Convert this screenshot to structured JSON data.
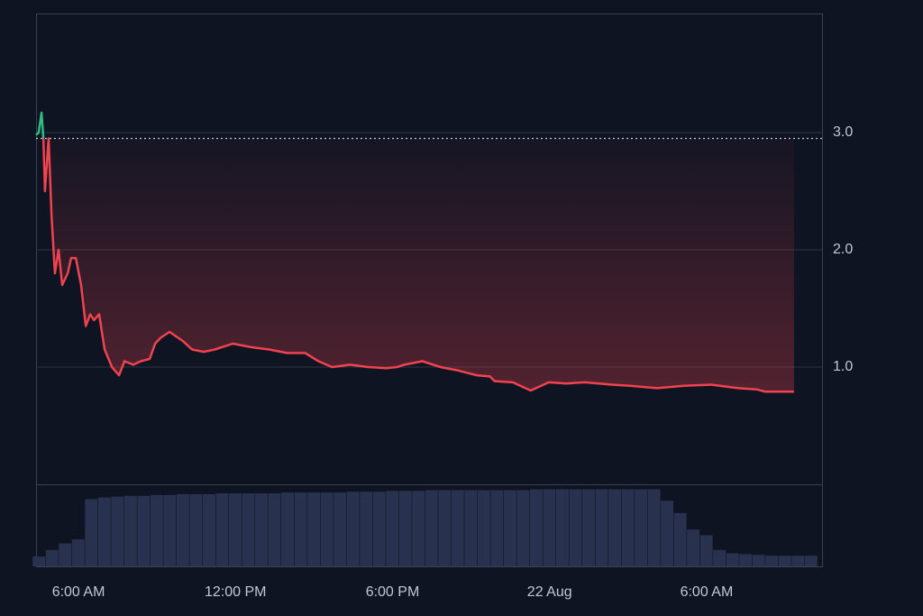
{
  "chart_data": {
    "type": "line",
    "x": [
      4.38,
      4.48,
      4.59,
      4.66,
      4.72,
      4.86,
      4.97,
      5.1,
      5.24,
      5.38,
      5.59,
      5.72,
      5.9,
      6.1,
      6.28,
      6.45,
      6.59,
      6.79,
      7.0,
      7.28,
      7.55,
      7.76,
      8.1,
      8.38,
      8.72,
      8.93,
      9.14,
      9.48,
      10.0,
      10.34,
      10.79,
      11.21,
      11.9,
      12.59,
      13.28,
      13.97,
      14.66,
      15.17,
      15.69,
      16.38,
      17.07,
      17.76,
      18.17,
      18.45,
      19.14,
      19.83,
      20.52,
      21.21,
      21.72,
      21.9,
      22.59,
      23.28,
      23.97,
      24.66,
      25.34,
      26.38,
      27.07,
      28.1,
      29.14,
      30.17,
      31.21,
      31.9,
      32.24,
      32.76,
      33.34
    ],
    "series": [
      {
        "color": "#f0434f",
        "values": [
          null,
          null,
          null,
          2.95,
          2.5,
          2.95,
          2.3,
          1.8,
          2.0,
          1.7,
          1.8,
          1.93,
          1.93,
          1.7,
          1.35,
          1.45,
          1.4,
          1.45,
          1.15,
          1.0,
          0.93,
          1.05,
          1.02,
          1.05,
          1.07,
          1.2,
          1.25,
          1.3,
          1.22,
          1.15,
          1.13,
          1.15,
          1.2,
          1.17,
          1.15,
          1.12,
          1.12,
          1.05,
          1.0,
          1.02,
          1.0,
          0.99,
          1.0,
          1.02,
          1.05,
          1.0,
          0.97,
          0.93,
          0.92,
          0.88,
          0.87,
          0.8,
          0.87,
          0.86,
          0.87,
          0.85,
          0.84,
          0.82,
          0.84,
          0.85,
          0.82,
          0.81,
          0.79,
          0.79,
          0.79
        ]
      },
      {
        "color": "#2dbd85",
        "values": [
          2.98,
          3.0,
          3.17,
          2.95,
          null,
          null,
          null,
          null,
          null,
          null,
          null,
          null,
          null,
          null,
          null,
          null,
          null,
          null,
          null,
          null,
          null,
          null,
          null,
          null,
          null,
          null,
          null,
          null,
          null,
          null,
          null,
          null,
          null,
          null,
          null,
          null,
          null,
          null,
          null,
          null,
          null,
          null,
          null,
          null,
          null,
          null,
          null,
          null,
          null,
          null,
          null,
          null,
          null,
          null,
          null,
          null,
          null,
          null,
          null,
          null,
          null,
          null,
          null,
          null,
          null
        ]
      }
    ],
    "baseline": 2.95,
    "xlim": [
      4.38,
      34.41
    ],
    "xticks": [
      {
        "value": 6,
        "label": "6:00 AM"
      },
      {
        "value": 12,
        "label": "12:00 PM"
      },
      {
        "value": 18,
        "label": "6:00 PM"
      },
      {
        "value": 24,
        "label": "22 Aug"
      },
      {
        "value": 30,
        "label": "6:00 AM"
      }
    ],
    "ylim": [
      0,
      4.0
    ],
    "yticks": [
      {
        "value": 1,
        "label": "1.0"
      },
      {
        "value": 2,
        "label": "2.0"
      },
      {
        "value": 3,
        "label": "3.0"
      }
    ],
    "grid": true,
    "volume": {
      "color": "#28324f",
      "x": [
        4.5,
        5.0,
        5.5,
        6.0,
        6.5,
        7.0,
        7.5,
        8.0,
        8.5,
        9.0,
        9.5,
        10.0,
        10.5,
        11.0,
        11.5,
        12.0,
        12.5,
        13.0,
        13.5,
        14.0,
        14.5,
        15.0,
        15.5,
        16.0,
        16.5,
        17.0,
        17.5,
        18.0,
        18.5,
        19.0,
        19.5,
        20.0,
        20.5,
        21.0,
        21.5,
        22.0,
        22.5,
        23.0,
        23.5,
        24.0,
        24.5,
        25.0,
        25.5,
        26.0,
        26.5,
        27.0,
        27.5,
        28.0,
        28.5,
        29.0,
        29.5,
        30.0,
        30.5,
        31.0,
        31.5,
        32.0,
        32.5,
        33.0,
        33.5,
        34.0
      ],
      "values": [
        12,
        20,
        28,
        33,
        82,
        84,
        85,
        86,
        86,
        87,
        87,
        88,
        88,
        88,
        89,
        89,
        89,
        89,
        89,
        90,
        90,
        90,
        90,
        90,
        91,
        91,
        91,
        92,
        92,
        92,
        93,
        93,
        93,
        93,
        93,
        93,
        93,
        93,
        94,
        94,
        94,
        94,
        94,
        94,
        94,
        94,
        94,
        94,
        80,
        65,
        45,
        38,
        20,
        16,
        15,
        14,
        13,
        13,
        13,
        13
      ],
      "ylim": [
        0,
        100
      ]
    }
  }
}
